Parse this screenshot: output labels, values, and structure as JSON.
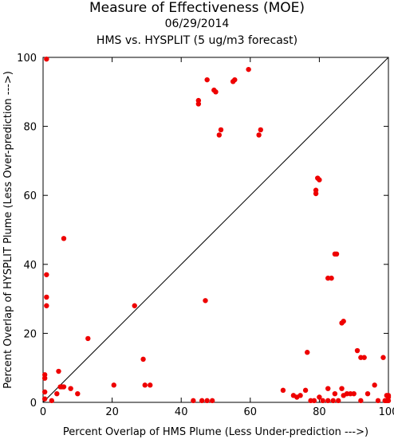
{
  "chart_data": {
    "type": "scatter",
    "title": "Measure of Effectiveness (MOE)",
    "subtitle": "06/29/2014",
    "subtitle2": "HMS vs. HYSPLIT  (5 ug/m3 forecast)",
    "xlabel": "Percent Overlap of HMS Plume (Less Under-prediction --->)",
    "ylabel": "Percent Overlap of HYSPLIT Plume (Less Over-prediction --->)",
    "xlim": [
      0,
      100
    ],
    "ylim": [
      0,
      100
    ],
    "xticks": [
      0,
      20,
      40,
      60,
      80,
      100
    ],
    "yticks": [
      0,
      20,
      40,
      60,
      80,
      100
    ],
    "diagonal": true,
    "grid": false,
    "point_color": "#ee0000",
    "points": [
      [
        1.0,
        99.5
      ],
      [
        1.0,
        37.0
      ],
      [
        1.0,
        30.5
      ],
      [
        1.0,
        28.0
      ],
      [
        0.5,
        8.0
      ],
      [
        0.5,
        7.0
      ],
      [
        0.5,
        3.0
      ],
      [
        0.5,
        1.0
      ],
      [
        2.5,
        0.5
      ],
      [
        4.0,
        2.5
      ],
      [
        4.5,
        9.0
      ],
      [
        5.0,
        4.5
      ],
      [
        5.5,
        4.5
      ],
      [
        6.0,
        4.5
      ],
      [
        6.0,
        47.5
      ],
      [
        8.0,
        4.0
      ],
      [
        10.0,
        2.5
      ],
      [
        13.0,
        18.5
      ],
      [
        20.5,
        5.0
      ],
      [
        26.5,
        28.0
      ],
      [
        29.0,
        12.5
      ],
      [
        29.5,
        5.0
      ],
      [
        31.0,
        5.0
      ],
      [
        43.5,
        0.5
      ],
      [
        45.0,
        87.5
      ],
      [
        45.0,
        86.5
      ],
      [
        46.0,
        0.5
      ],
      [
        47.0,
        29.5
      ],
      [
        47.5,
        0.5
      ],
      [
        47.5,
        93.5
      ],
      [
        49.0,
        0.5
      ],
      [
        49.5,
        90.5
      ],
      [
        50.0,
        90.0
      ],
      [
        51.0,
        77.5
      ],
      [
        51.5,
        79.0
      ],
      [
        55.0,
        93.0
      ],
      [
        55.5,
        93.5
      ],
      [
        59.5,
        96.5
      ],
      [
        62.5,
        77.5
      ],
      [
        63.0,
        79.0
      ],
      [
        69.5,
        3.5
      ],
      [
        72.5,
        2.0
      ],
      [
        73.5,
        1.5
      ],
      [
        74.5,
        2.0
      ],
      [
        76.0,
        3.5
      ],
      [
        76.5,
        14.5
      ],
      [
        77.5,
        0.5
      ],
      [
        78.5,
        0.5
      ],
      [
        79.0,
        60.5
      ],
      [
        79.0,
        61.5
      ],
      [
        79.5,
        65.0
      ],
      [
        80.0,
        64.5
      ],
      [
        80.0,
        1.5
      ],
      [
        81.0,
        0.5
      ],
      [
        82.5,
        36.0
      ],
      [
        82.5,
        0.5
      ],
      [
        82.5,
        4.0
      ],
      [
        83.5,
        36.0
      ],
      [
        84.0,
        0.5
      ],
      [
        84.5,
        2.5
      ],
      [
        84.5,
        43.0
      ],
      [
        85.0,
        43.0
      ],
      [
        85.5,
        0.5
      ],
      [
        86.5,
        4.0
      ],
      [
        86.5,
        23.0
      ],
      [
        87.0,
        23.5
      ],
      [
        87.0,
        2.0
      ],
      [
        88.0,
        2.5
      ],
      [
        89.0,
        2.5
      ],
      [
        90.0,
        2.5
      ],
      [
        91.0,
        15.0
      ],
      [
        92.0,
        0.5
      ],
      [
        92.0,
        13.0
      ],
      [
        93.0,
        13.0
      ],
      [
        94.0,
        2.5
      ],
      [
        96.0,
        5.0
      ],
      [
        97.0,
        0.5
      ],
      [
        98.5,
        13.0
      ],
      [
        99.0,
        0.5
      ],
      [
        99.5,
        0.5
      ],
      [
        99.5,
        2.0
      ],
      [
        100.0,
        0.5
      ],
      [
        100.0,
        2.0
      ],
      [
        100.0,
        1.5
      ]
    ]
  }
}
